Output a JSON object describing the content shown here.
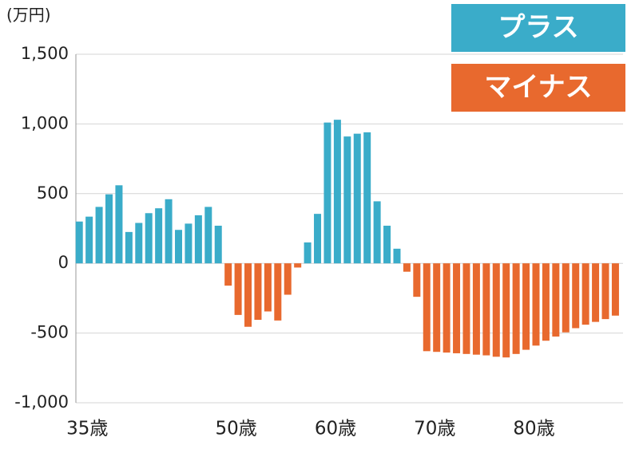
{
  "chart_data": {
    "type": "bar",
    "unit": "(万円)",
    "categories": [
      "35歳",
      null,
      null,
      null,
      null,
      null,
      null,
      null,
      null,
      null,
      null,
      null,
      null,
      null,
      null,
      "50歳",
      null,
      null,
      null,
      null,
      null,
      null,
      null,
      null,
      null,
      "60歳",
      null,
      null,
      null,
      null,
      null,
      null,
      null,
      null,
      null,
      "70歳",
      null,
      null,
      null,
      null,
      null,
      null,
      null,
      null,
      null,
      "80歳",
      null,
      null,
      null,
      null,
      null,
      null,
      null,
      null,
      null
    ],
    "values": [
      300,
      335,
      405,
      495,
      560,
      225,
      290,
      360,
      395,
      460,
      240,
      285,
      345,
      405,
      270,
      -160,
      -370,
      -455,
      -405,
      -345,
      -410,
      -225,
      -30,
      150,
      355,
      1010,
      1030,
      910,
      930,
      940,
      445,
      270,
      105,
      -60,
      -240,
      -630,
      -635,
      -640,
      -645,
      -650,
      -655,
      -660,
      -670,
      -675,
      -650,
      -620,
      -590,
      -555,
      -525,
      -495,
      -465,
      -440,
      -420,
      -400,
      -375
    ],
    "legend": [
      {
        "label": "プラス",
        "color": "#3aacc9"
      },
      {
        "label": "マイナス",
        "color": "#e8692e"
      }
    ],
    "ylim": [
      -1000,
      1500
    ],
    "yticks": [
      {
        "value": -1000,
        "label": "-1,000"
      },
      -500,
      0,
      500,
      {
        "value": 1000,
        "label": "1,000"
      },
      {
        "value": 1500,
        "label": "1,500"
      }
    ],
    "grid": true
  }
}
